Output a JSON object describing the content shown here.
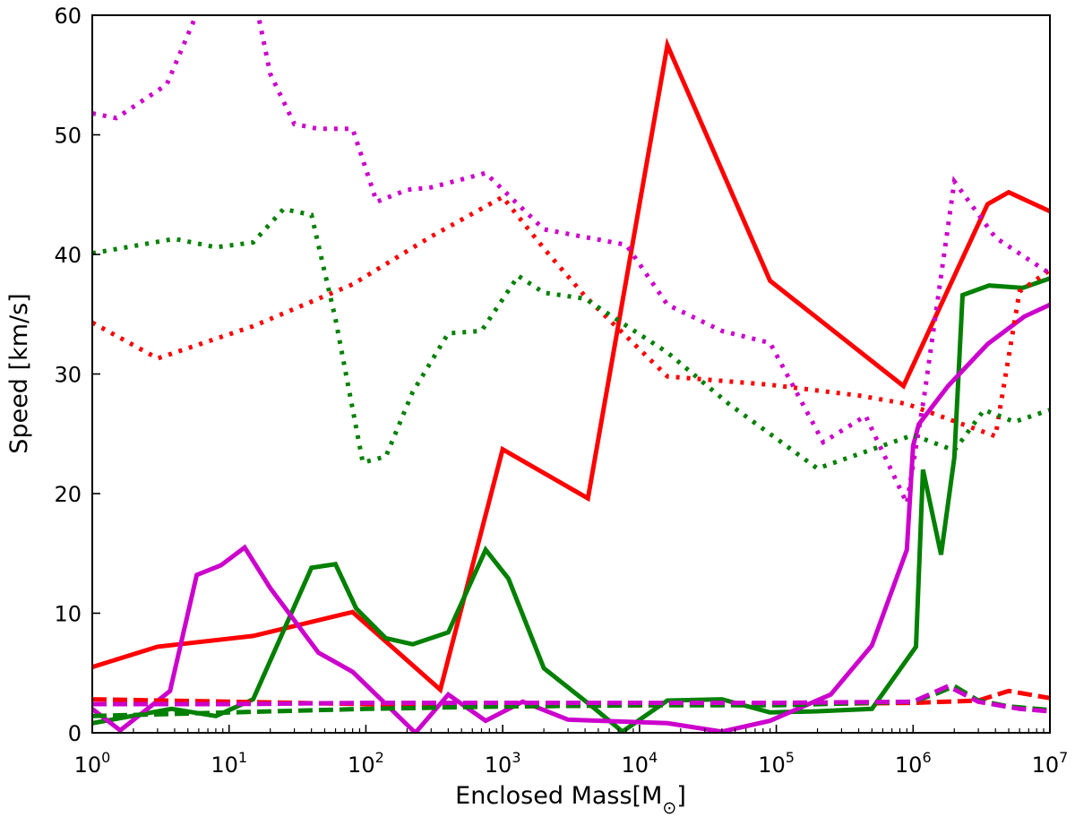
{
  "chart_data": {
    "type": "line",
    "title": "",
    "xlabel": {
      "main": "Enclosed Mass[M",
      "sub": "⊙",
      "close": "]"
    },
    "ylabel": "Speed [km/s]",
    "x_scale": "log",
    "xlim": [
      1,
      10000000
    ],
    "ylim": [
      0,
      60
    ],
    "grid": false,
    "legend": "none",
    "x_ticks": [
      {
        "base": "10",
        "exp": "0",
        "value": 1
      },
      {
        "base": "10",
        "exp": "1",
        "value": 10
      },
      {
        "base": "10",
        "exp": "2",
        "value": 100
      },
      {
        "base": "10",
        "exp": "3",
        "value": 1000
      },
      {
        "base": "10",
        "exp": "4",
        "value": 10000
      },
      {
        "base": "10",
        "exp": "5",
        "value": 100000
      },
      {
        "base": "10",
        "exp": "6",
        "value": 1000000
      },
      {
        "base": "10",
        "exp": "7",
        "value": 10000000
      }
    ],
    "y_ticks": [
      {
        "label": "0",
        "value": 0
      },
      {
        "label": "10",
        "value": 10
      },
      {
        "label": "20",
        "value": 20
      },
      {
        "label": "30",
        "value": 30
      },
      {
        "label": "40",
        "value": 40
      },
      {
        "label": "50",
        "value": 50
      },
      {
        "label": "60",
        "value": 60
      }
    ],
    "series": [
      {
        "name": "red-solid",
        "color": "#ff0000",
        "style": "solid",
        "x": [
          1,
          3,
          15,
          80,
          350,
          1000,
          4200,
          16000,
          90000,
          850000,
          3500000,
          5000000,
          10000000
        ],
        "y": [
          5.5,
          7.2,
          8.1,
          10.1,
          3.6,
          23.7,
          19.6,
          57.5,
          37.8,
          29.0,
          44.2,
          45.2,
          43.6
        ]
      },
      {
        "name": "green-solid",
        "color": "#008000",
        "style": "solid",
        "x": [
          1,
          3.8,
          8,
          15,
          40,
          60,
          85,
          140,
          220,
          400,
          750,
          1100,
          2000,
          4500,
          7500,
          16000,
          40000,
          90000,
          200000,
          500000,
          1050000,
          1180000,
          1600000,
          2000000,
          2300000,
          3600000,
          6300000,
          10000000
        ],
        "y": [
          0.8,
          2.0,
          1.4,
          2.8,
          13.8,
          14.1,
          10.4,
          7.9,
          7.4,
          8.4,
          15.3,
          12.9,
          5.4,
          2.2,
          0.1,
          2.7,
          2.8,
          1.7,
          1.8,
          2.0,
          7.2,
          22.0,
          14.9,
          23.0,
          36.6,
          37.4,
          37.2,
          38.0
        ],
        "note": "segments drawn in order; approximate path"
      },
      {
        "name": "magenta-solid",
        "color": "#cc00cc",
        "style": "solid",
        "x": [
          1,
          1.6,
          3.7,
          5.8,
          8.7,
          13,
          20,
          45,
          80,
          230,
          400,
          750,
          1400,
          3000,
          16000,
          40000,
          90000,
          250000,
          500000,
          900000,
          1000000,
          1100000,
          1800000,
          3500000,
          6500000,
          10000000
        ],
        "y": [
          2.0,
          0.2,
          3.5,
          13.2,
          14.0,
          15.5,
          12.1,
          6.7,
          5.1,
          0.0,
          3.2,
          1.0,
          2.6,
          1.1,
          0.8,
          0.1,
          1.0,
          3.2,
          7.3,
          15.3,
          24.0,
          25.8,
          29.0,
          32.5,
          34.8,
          35.8
        ]
      },
      {
        "name": "red-dotted",
        "color": "#ff0000",
        "style": "dotted",
        "x": [
          1,
          3,
          15,
          80,
          300,
          1000,
          2000,
          4000,
          16000,
          90000,
          400000,
          900000,
          4000000,
          6000000,
          10000000
        ],
        "y": [
          34.3,
          31.3,
          34.0,
          37.5,
          41.5,
          44.8,
          40.5,
          36.5,
          29.8,
          29.1,
          28.2,
          27.5,
          24.8,
          36.9,
          38.7
        ]
      },
      {
        "name": "green-dotted",
        "color": "#008000",
        "style": "dotted",
        "x": [
          1,
          4,
          8,
          15,
          25,
          40,
          60,
          95,
          140,
          220,
          400,
          700,
          1300,
          2000,
          4000,
          16000,
          45000,
          200000,
          1000000,
          2000000,
          3300000,
          5500000,
          10000000
        ],
        "y": [
          40.1,
          41.3,
          40.6,
          41.0,
          43.8,
          43.3,
          34.6,
          22.6,
          23.1,
          28.5,
          33.4,
          33.6,
          38.2,
          36.8,
          36.3,
          31.8,
          27.5,
          22.1,
          24.9,
          23.6,
          27.0,
          26.0,
          27.0
        ]
      },
      {
        "name": "magenta-dotted",
        "color": "#cc00cc",
        "style": "dotted",
        "x": [
          1,
          1.5,
          3.5,
          6,
          16,
          20,
          30,
          45,
          80,
          120,
          200,
          300,
          750,
          2000,
          8000,
          16000,
          40000,
          90000,
          220000,
          450000,
          900000,
          1200000,
          2000000,
          4000000,
          10000000
        ],
        "y": [
          51.8,
          51.4,
          54.2,
          60.5,
          60.5,
          55.1,
          50.9,
          50.5,
          50.5,
          44.4,
          45.4,
          45.6,
          46.8,
          42.1,
          40.8,
          35.8,
          33.6,
          32.6,
          24.3,
          26.5,
          19.2,
          28.0,
          46.1,
          41.4,
          38.4
        ]
      },
      {
        "name": "red-dashed",
        "color": "#ff0000",
        "style": "dashed",
        "x": [
          1,
          10,
          100,
          1000,
          10000,
          100000,
          1000000,
          3000000,
          5000000,
          10000000
        ],
        "y": [
          2.8,
          2.6,
          2.4,
          2.2,
          2.3,
          2.4,
          2.5,
          2.7,
          3.5,
          2.9
        ]
      },
      {
        "name": "green-dashed",
        "color": "#008000",
        "style": "dashed",
        "x": [
          1,
          10,
          100,
          1000,
          10000,
          100000,
          1000000,
          1500000,
          2000000,
          3000000,
          5000000,
          10000000
        ],
        "y": [
          1.4,
          1.7,
          2.0,
          2.2,
          2.3,
          2.3,
          2.6,
          3.3,
          3.9,
          2.7,
          2.2,
          1.9
        ]
      },
      {
        "name": "magenta-dashed",
        "color": "#cc00cc",
        "style": "dashed",
        "x": [
          1,
          10,
          100,
          1000,
          10000,
          100000,
          1000000,
          1800000,
          3000000,
          6000000,
          10000000
        ],
        "y": [
          2.4,
          2.4,
          2.5,
          2.5,
          2.5,
          2.5,
          2.6,
          3.9,
          2.6,
          2.0,
          1.8
        ]
      }
    ]
  }
}
